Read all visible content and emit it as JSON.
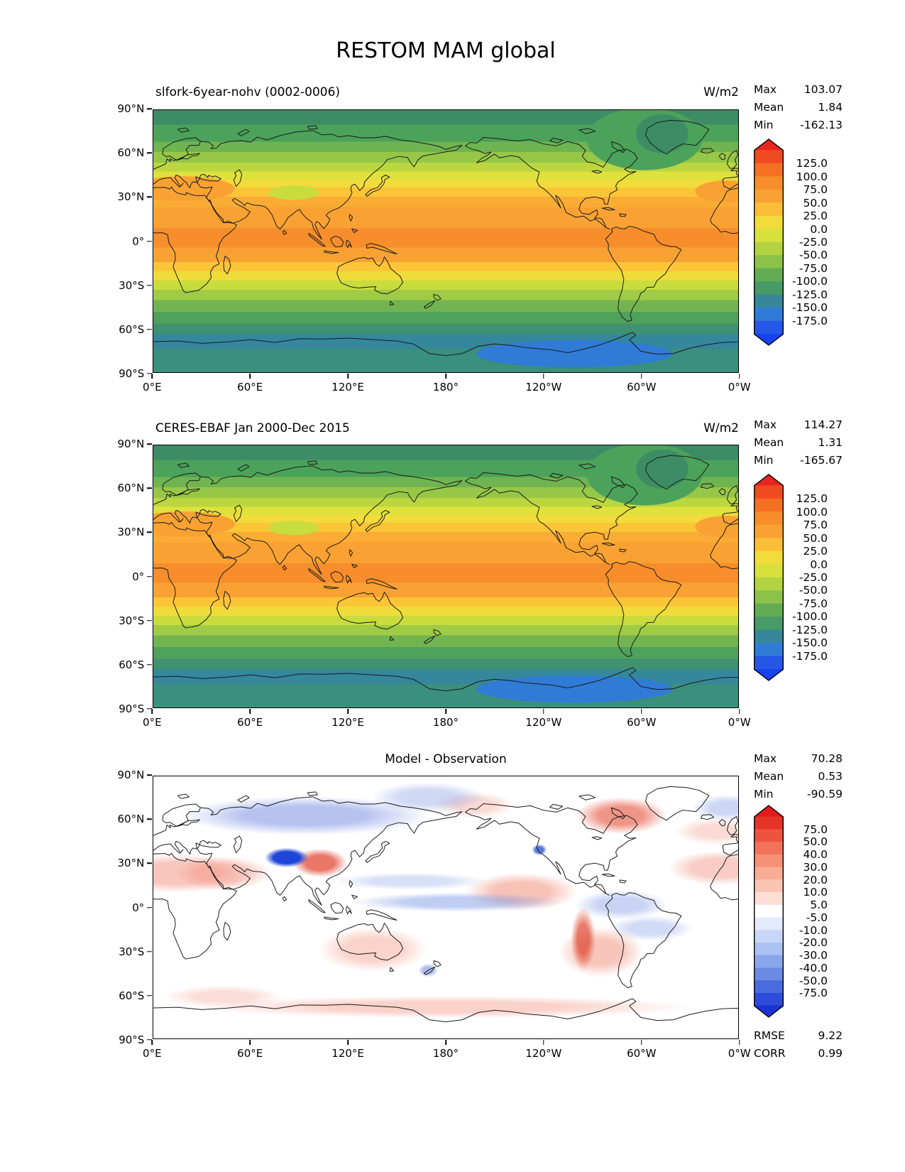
{
  "figure": {
    "suptitle": "RESTOM MAM global"
  },
  "axes": {
    "x_ticks": [
      "0°E",
      "60°E",
      "120°E",
      "180°",
      "120°W",
      "60°W",
      "0°W"
    ],
    "y_ticks": [
      "90°N",
      "60°N",
      "30°N",
      "0°",
      "30°S",
      "60°S",
      "90°S"
    ]
  },
  "panels": [
    {
      "title": "slfork-6year-nohv (0002-0006)",
      "units": "W/m2",
      "stats": [
        {
          "label": "Max",
          "value": "103.07"
        },
        {
          "label": "Mean",
          "value": "1.84"
        },
        {
          "label": "Min",
          "value": "-162.13"
        }
      ],
      "colorbar": {
        "ticks": [
          "125.0",
          "100.0",
          "75.0",
          "50.0",
          "25.0",
          "0.0",
          "-25.0",
          "-50.0",
          "-75.0",
          "-100.0",
          "-125.0",
          "-150.0",
          "-175.0"
        ],
        "colors": [
          "#F04A21",
          "#F47022",
          "#F78D2B",
          "#F9A233",
          "#FBBE38",
          "#F2DC3B",
          "#D8E03D",
          "#B4D342",
          "#8CC24A",
          "#63AC53",
          "#479B66",
          "#37879B",
          "#2F7BD6",
          "#2457E6"
        ],
        "arrow_top": "#E8251F",
        "arrow_bottom": "#1642F0"
      }
    },
    {
      "title": "CERES-EBAF Jan 2000-Dec 2015",
      "units": "W/m2",
      "stats": [
        {
          "label": "Max",
          "value": "114.27"
        },
        {
          "label": "Mean",
          "value": "1.31"
        },
        {
          "label": "Min",
          "value": "-165.67"
        }
      ],
      "colorbar": {
        "ticks": [
          "125.0",
          "100.0",
          "75.0",
          "50.0",
          "25.0",
          "0.0",
          "-25.0",
          "-50.0",
          "-75.0",
          "-100.0",
          "-125.0",
          "-150.0",
          "-175.0"
        ],
        "colors": [
          "#F04A21",
          "#F47022",
          "#F78D2B",
          "#F9A233",
          "#FBBE38",
          "#F2DC3B",
          "#D8E03D",
          "#B4D342",
          "#8CC24A",
          "#63AC53",
          "#479B66",
          "#37879B",
          "#2F7BD6",
          "#2457E6"
        ],
        "arrow_top": "#E8251F",
        "arrow_bottom": "#1642F0"
      }
    },
    {
      "title": "Model - Observation",
      "units": "",
      "stats": [
        {
          "label": "Max",
          "value": "70.28"
        },
        {
          "label": "Mean",
          "value": "0.53"
        },
        {
          "label": "Min",
          "value": "-90.59"
        }
      ],
      "extra_stats": [
        {
          "label": "RMSE",
          "value": "9.22"
        },
        {
          "label": "CORR",
          "value": "0.99"
        }
      ],
      "colorbar": {
        "ticks": [
          "75.0",
          "50.0",
          "40.0",
          "30.0",
          "20.0",
          "10.0",
          "5.0",
          "-5.0",
          "-10.0",
          "-20.0",
          "-30.0",
          "-40.0",
          "-50.0",
          "-75.0"
        ],
        "colors": [
          "#E53426",
          "#ED5440",
          "#F2735A",
          "#F69177",
          "#F9AD94",
          "#FBC5B4",
          "#FDDFD5",
          "#FFFFFF",
          "#E2EAFB",
          "#C8D7F7",
          "#AAC1F2",
          "#8AA6EC",
          "#6A8AE5",
          "#4A6CDE",
          "#2C4CD9"
        ],
        "arrow_top": "#E41A1B",
        "arrow_bottom": "#1C33D4"
      }
    }
  ],
  "chart_data": [
    {
      "type": "heatmap",
      "subtype": "global-filled-contour-map",
      "title": "slfork-6year-nohv (0002-0006)",
      "suptitle": "RESTOM MAM global",
      "units": "W/m2",
      "stats": {
        "max": 103.07,
        "mean": 1.84,
        "min": -162.13
      },
      "colorbar_tick_values": [
        125,
        100,
        75,
        50,
        25,
        0,
        -25,
        -50,
        -75,
        -100,
        -125,
        -150,
        -175
      ],
      "x_tick_labels": [
        "0°E",
        "60°E",
        "120°E",
        "180°",
        "120°W",
        "60°W",
        "0°W"
      ],
      "y_tick_labels": [
        "90°N",
        "60°N",
        "30°N",
        "0°",
        "30°S",
        "60°S",
        "90°S"
      ],
      "extent": {
        "lon": [
          0,
          360
        ],
        "lat": [
          -90,
          90
        ]
      },
      "pattern_summary": "Zonal bands: ~-160 W/m2 dark green/blue at poles, Antarctic minimum blue, +100 W/m2 orange maximum in tropics"
    },
    {
      "type": "heatmap",
      "subtype": "global-filled-contour-map",
      "title": "CERES-EBAF Jan 2000-Dec 2015",
      "units": "W/m2",
      "stats": {
        "max": 114.27,
        "mean": 1.31,
        "min": -165.67
      },
      "colorbar_tick_values": [
        125,
        100,
        75,
        50,
        25,
        0,
        -25,
        -50,
        -75,
        -100,
        -125,
        -150,
        -175
      ],
      "x_tick_labels": [
        "0°E",
        "60°E",
        "120°E",
        "180°",
        "120°W",
        "60°W",
        "0°W"
      ],
      "y_tick_labels": [
        "90°N",
        "60°N",
        "30°N",
        "0°",
        "30°S",
        "60°S",
        "90°S"
      ],
      "extent": {
        "lon": [
          0,
          360
        ],
        "lat": [
          -90,
          90
        ]
      },
      "pattern_summary": "Observed net TOA radiation, same zonal structure as model panel"
    },
    {
      "type": "heatmap",
      "subtype": "global-filled-contour-difference-map",
      "title": "Model - Observation",
      "units": "W/m2",
      "stats": {
        "max": 70.28,
        "mean": 0.53,
        "min": -90.59,
        "rmse": 9.22,
        "corr": 0.99
      },
      "colorbar_tick_values": [
        75,
        50,
        40,
        30,
        20,
        10,
        5,
        -5,
        -10,
        -20,
        -30,
        -40,
        -50,
        -75
      ],
      "x_tick_labels": [
        "0°E",
        "60°E",
        "120°E",
        "180°",
        "120°W",
        "60°W",
        "0°W"
      ],
      "y_tick_labels": [
        "90°N",
        "60°N",
        "30°N",
        "0°",
        "30°S",
        "60°S",
        "90°S"
      ],
      "extent": {
        "lon": [
          0,
          360
        ],
        "lat": [
          -90,
          90
        ]
      },
      "pattern_summary": "Mostly near zero (white); strong negative bias over Tibetan Plateau, positive over east China, E Canada and Andes/west South America; weak negative band over equatorial Pacific"
    }
  ]
}
